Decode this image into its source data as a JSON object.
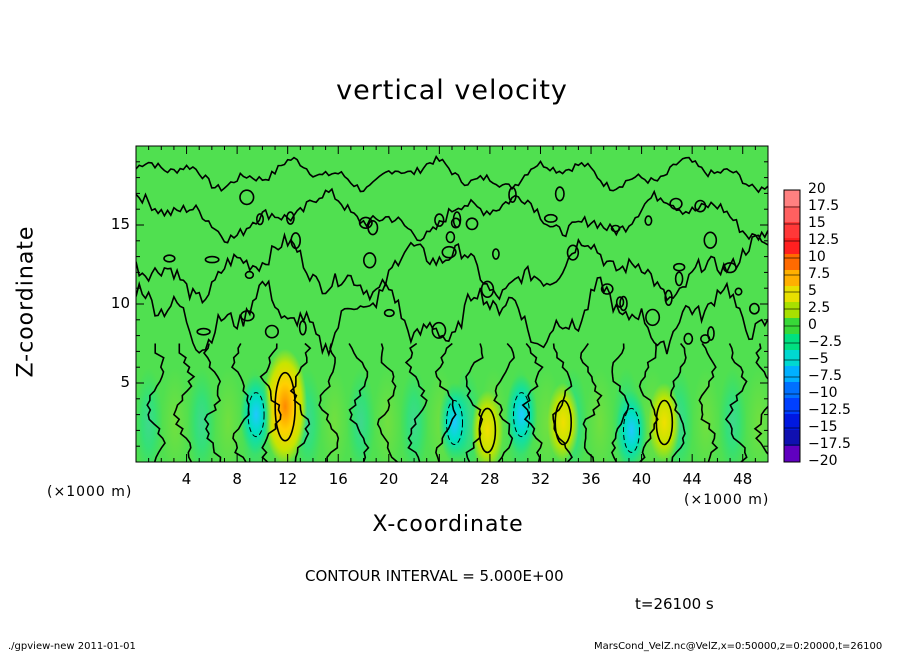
{
  "chart_data": {
    "type": "heatmap",
    "title": "vertical velocity",
    "xlabel": "X-coordinate",
    "ylabel": "Z-coordinate",
    "x_unit": "(×1000 m)",
    "x_unit_right": "(×1000 m)",
    "xlim": [
      0,
      50
    ],
    "ylim": [
      0,
      20
    ],
    "x_ticks": [
      "4",
      "8",
      "12",
      "16",
      "20",
      "24",
      "28",
      "32",
      "36",
      "40",
      "44",
      "48"
    ],
    "y_ticks": [
      "5",
      "10",
      "15"
    ],
    "colorbar_labels": [
      "20",
      "17.5",
      "15",
      "12.5",
      "10",
      "7.5",
      "5",
      "2.5",
      "0",
      "-2.5",
      "-5",
      "-7.5",
      "-10",
      "-12.5",
      "-15",
      "-17.5",
      "-20"
    ],
    "colorbar_colors": [
      "#ff8080",
      "#ff6060",
      "#ff3838",
      "#ff2020",
      "#ff6a00",
      "#ffb000",
      "#e8e000",
      "#a8e000",
      "#38d838",
      "#00e080",
      "#00d8d0",
      "#00b0ff",
      "#0070ff",
      "#0040ff",
      "#0018e0",
      "#1010b0",
      "#6000c0"
    ],
    "background_color": "#50e050",
    "features": [
      {
        "label": "updraft",
        "x": 11.8,
        "z": 3.5,
        "value": 10
      },
      {
        "label": "updraft",
        "x": 27.8,
        "z": 2.0,
        "value": 6
      },
      {
        "label": "updraft",
        "x": 33.8,
        "z": 2.5,
        "value": 6
      },
      {
        "label": "updraft",
        "x": 41.8,
        "z": 2.5,
        "value": 5
      },
      {
        "label": "downdraft",
        "x": 9.5,
        "z": 3.0,
        "value": -6
      },
      {
        "label": "downdraft",
        "x": 25.2,
        "z": 2.5,
        "value": -6
      },
      {
        "label": "downdraft",
        "x": 30.5,
        "z": 3.0,
        "value": -6
      },
      {
        "label": "downdraft",
        "x": 39.2,
        "z": 2.0,
        "value": -5
      }
    ],
    "contour_interval": "CONTOUR INTERVAL = 5.000E+00",
    "time_label": "t=26100 s"
  },
  "footer": {
    "left": "./gpview-new   2011-01-01",
    "right": "MarsCond_VelZ.nc@VelZ,x=0:50000,z=0:20000,t=26100"
  }
}
